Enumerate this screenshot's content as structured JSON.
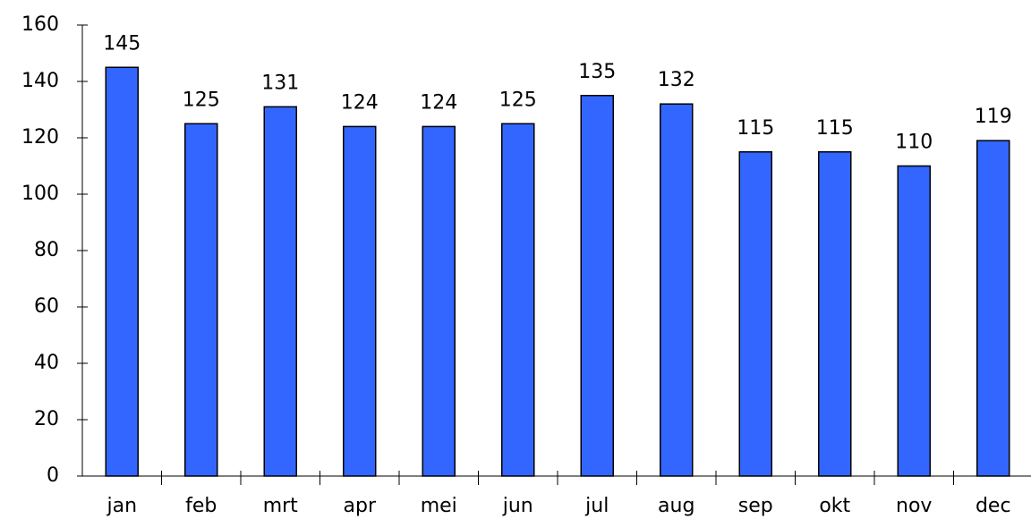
{
  "chart_data": {
    "type": "bar",
    "categories": [
      "jan",
      "feb",
      "mrt",
      "apr",
      "mei",
      "jun",
      "jul",
      "aug",
      "sep",
      "okt",
      "nov",
      "dec"
    ],
    "values": [
      145,
      125,
      131,
      124,
      124,
      125,
      135,
      132,
      115,
      115,
      110,
      119
    ],
    "color": "#3366ff",
    "ylim": [
      0,
      160
    ],
    "yticks": [
      0,
      20,
      40,
      60,
      80,
      100,
      120,
      140,
      160
    ],
    "grid": false
  }
}
